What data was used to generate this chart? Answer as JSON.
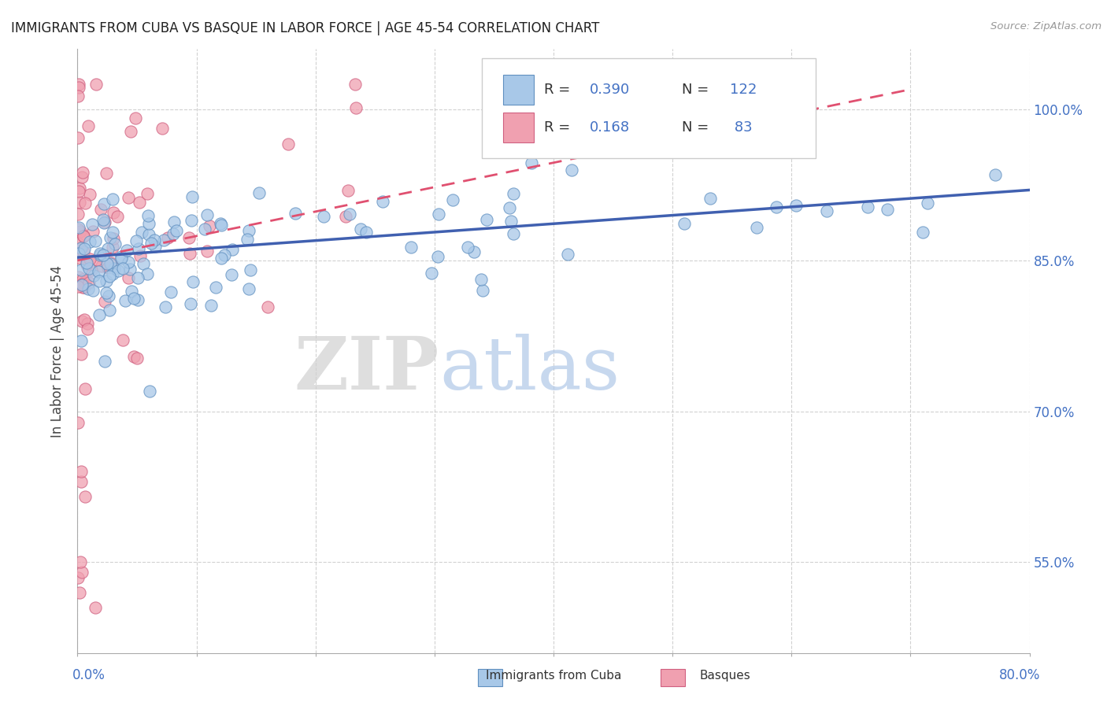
{
  "title": "IMMIGRANTS FROM CUBA VS BASQUE IN LABOR FORCE | AGE 45-54 CORRELATION CHART",
  "source": "Source: ZipAtlas.com",
  "ylabel": "In Labor Force | Age 45-54",
  "ytick_labels": [
    "55.0%",
    "70.0%",
    "85.0%",
    "100.0%"
  ],
  "ytick_values": [
    0.55,
    0.7,
    0.85,
    1.0
  ],
  "xlim": [
    0.0,
    0.8
  ],
  "ylim": [
    0.46,
    1.06
  ],
  "blue_scatter_color": "#a8c8e8",
  "blue_edge_color": "#6090c0",
  "pink_scatter_color": "#f0a0b0",
  "pink_edge_color": "#d06080",
  "trend_blue_color": "#4060b0",
  "trend_pink_color": "#e05070",
  "grid_color": "#cccccc",
  "axis_color": "#aaaaaa",
  "right_label_color": "#4472c4",
  "watermark_zip_color": "#d0d0d0",
  "watermark_atlas_color": "#b0c8e8",
  "legend_R_color": "#333333",
  "legend_N_color": "#4472c4",
  "legend_val_color": "#4472c4",
  "source_color": "#999999"
}
